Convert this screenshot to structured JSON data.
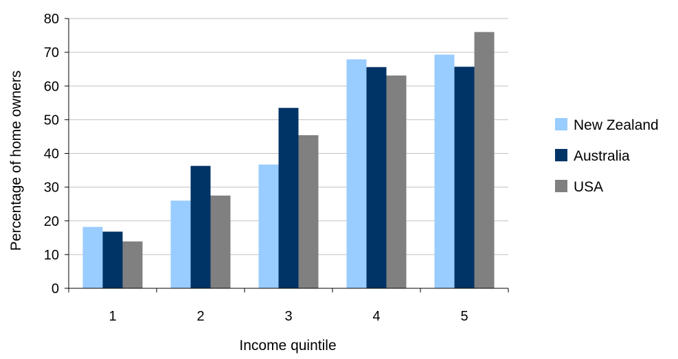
{
  "chart_data": {
    "type": "bar",
    "title": "",
    "xlabel": "Income quintile",
    "ylabel": "Percentage of home owners",
    "categories": [
      "1",
      "2",
      "3",
      "4",
      "5"
    ],
    "ylim": [
      0,
      80
    ],
    "yticks": [
      0,
      10,
      20,
      30,
      40,
      50,
      60,
      70,
      80
    ],
    "grid": true,
    "legend_position": "right",
    "series": [
      {
        "name": "New Zealand",
        "color": "#99ccff",
        "values": [
          18.2,
          26.0,
          36.7,
          67.9,
          69.3
        ]
      },
      {
        "name": "Australia",
        "color": "#003366",
        "values": [
          16.8,
          36.3,
          53.5,
          65.6,
          65.7
        ]
      },
      {
        "name": "USA",
        "color": "#808080",
        "values": [
          13.9,
          27.5,
          45.4,
          63.1,
          76.0
        ]
      }
    ]
  }
}
